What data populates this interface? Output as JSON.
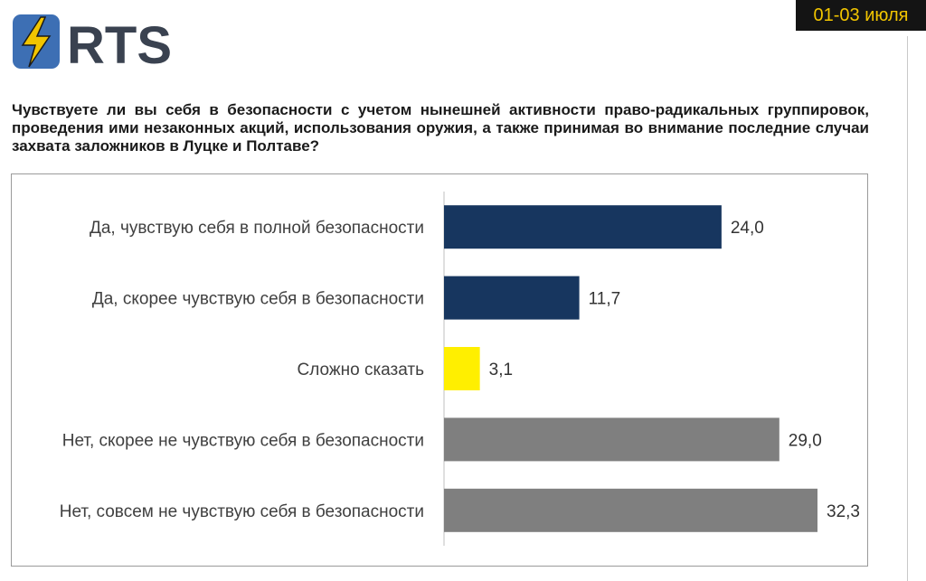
{
  "header": {
    "logo_text": "RTS",
    "date": "01-03 июля"
  },
  "question": "Чувствуете ли вы себя в безопасности с учетом нынешней активности право-радикальных группировок, проведения ими незаконных акций, использования оружия, а также принимая во внимание последние случаи захвата заложников в Луцке и Полтаве?",
  "colors": {
    "brand_blue": "#3d6fb4",
    "lightning_yellow": "#f2c500",
    "yes_bar": "#17365f",
    "unsure_bar": "#ffef00",
    "no_bar": "#7f7f7f"
  },
  "chart_data": {
    "type": "bar",
    "orientation": "horizontal",
    "categories": [
      "Да, чувствую себя в полной безопасности",
      "Да, скорее чувствую себя в безопасности",
      "Сложно сказать",
      "Нет, скорее не чувствую себя в безопасности",
      "Нет, совсем не чувствую себя в безопасности"
    ],
    "values": [
      24.0,
      11.7,
      3.1,
      29.0,
      32.3
    ],
    "value_labels": [
      "24,0",
      "11,7",
      "3,1",
      "29,0",
      "32,3"
    ],
    "colors": [
      "#17365f",
      "#17365f",
      "#ffef00",
      "#7f7f7f",
      "#7f7f7f"
    ],
    "xlim": [
      0,
      36
    ],
    "grid": false,
    "legend": "none"
  }
}
